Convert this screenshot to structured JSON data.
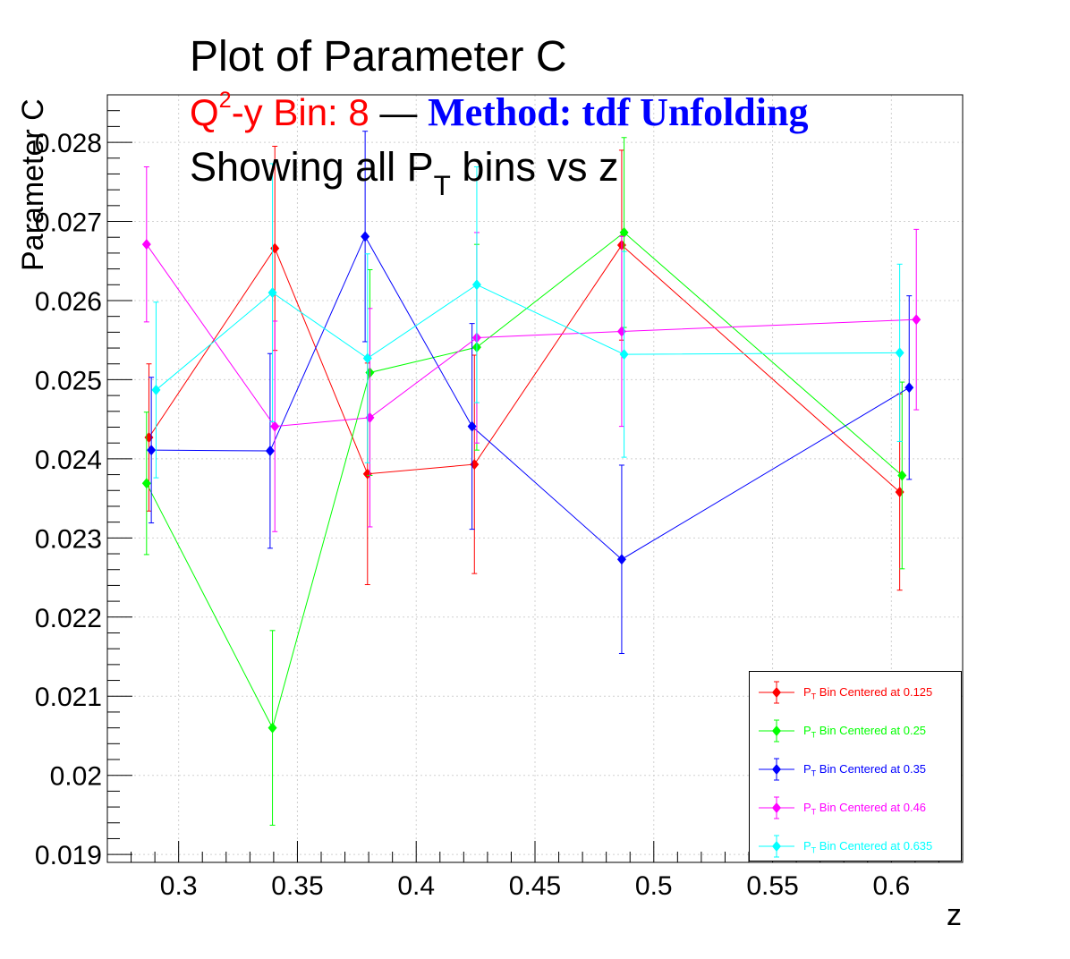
{
  "title": {
    "line1": "Plot of Parameter C",
    "line2_q": "Q",
    "line2_sup": "2",
    "line2_rest": "-y Bin: 8",
    "line2_dash": " —  ",
    "line2_method": "Method: tdf Unfolding",
    "line3_pre": "Showing all P",
    "line3_sub": "T",
    "line3_post": " bins vs z"
  },
  "chart_data": {
    "type": "scatter",
    "xlabel": "z",
    "ylabel": "Parameter C",
    "xlim": [
      0.27,
      0.63
    ],
    "ylim": [
      0.0189,
      0.0286
    ],
    "xticks": [
      0.3,
      0.35,
      0.4,
      0.45,
      0.5,
      0.55,
      0.6
    ],
    "xtick_labels": [
      "0.3",
      "0.35",
      "0.4",
      "0.45",
      "0.5",
      "0.55",
      "0.6"
    ],
    "yticks": [
      0.019,
      0.02,
      0.021,
      0.022,
      0.023,
      0.024,
      0.025,
      0.026,
      0.027,
      0.028
    ],
    "ytick_labels": [
      "0.019",
      "0.02",
      "0.021",
      "0.022",
      "0.023",
      "0.024",
      "0.025",
      "0.026",
      "0.027",
      "0.028"
    ],
    "grid": true,
    "legend_position": "bottom-right",
    "series": [
      {
        "name_prefix": "P",
        "name_sub": "T",
        "name_suffix": " Bin Centered at 0.125",
        "color": "#ff0000",
        "x": [
          0.2875,
          0.3405,
          0.3795,
          0.4245,
          0.4865,
          0.6035
        ],
        "y": [
          0.02427,
          0.02666,
          0.02381,
          0.02393,
          0.0267,
          0.02358
        ],
        "err": [
          0.00093,
          0.00129,
          0.0014,
          0.00138,
          0.0012,
          0.00124
        ]
      },
      {
        "name_prefix": "P",
        "name_sub": "T",
        "name_suffix": " Bin Centered at 0.25",
        "color": "#00ff00",
        "x": [
          0.2865,
          0.3395,
          0.3805,
          0.4255,
          0.4875,
          0.6045
        ],
        "y": [
          0.02369,
          0.0206,
          0.02509,
          0.02541,
          0.02686,
          0.02379
        ],
        "err": [
          0.0009,
          0.00123,
          0.0013,
          0.0013,
          0.0012,
          0.00118
        ]
      },
      {
        "name_prefix": "P",
        "name_sub": "T",
        "name_suffix": " Bin Centered at 0.35",
        "color": "#0000ff",
        "x": [
          0.2885,
          0.3385,
          0.3785,
          0.4235,
          0.4865,
          0.6075
        ],
        "y": [
          0.02411,
          0.0241,
          0.02681,
          0.02441,
          0.02273,
          0.0249
        ],
        "err": [
          0.00092,
          0.00123,
          0.00133,
          0.0013,
          0.00119,
          0.00116
        ]
      },
      {
        "name_prefix": "P",
        "name_sub": "T",
        "name_suffix": " Bin Centered at 0.46",
        "color": "#ff00ff",
        "x": [
          0.2865,
          0.3405,
          0.3805,
          0.4255,
          0.4865,
          0.6105
        ],
        "y": [
          0.02671,
          0.02441,
          0.02452,
          0.02553,
          0.02561,
          0.02576
        ],
        "err": [
          0.00098,
          0.00133,
          0.00138,
          0.00133,
          0.0012,
          0.00114
        ]
      },
      {
        "name_prefix": "P",
        "name_sub": "T",
        "name_suffix": " Bin Centered at 0.635",
        "color": "#00ffff",
        "x": [
          0.2905,
          0.3395,
          0.3795,
          0.4255,
          0.4875,
          0.6035
        ],
        "y": [
          0.02487,
          0.0261,
          0.02527,
          0.0262,
          0.02532,
          0.02534
        ],
        "err": [
          0.00111,
          0.00163,
          0.00132,
          0.00149,
          0.0013,
          0.00112
        ]
      }
    ]
  }
}
